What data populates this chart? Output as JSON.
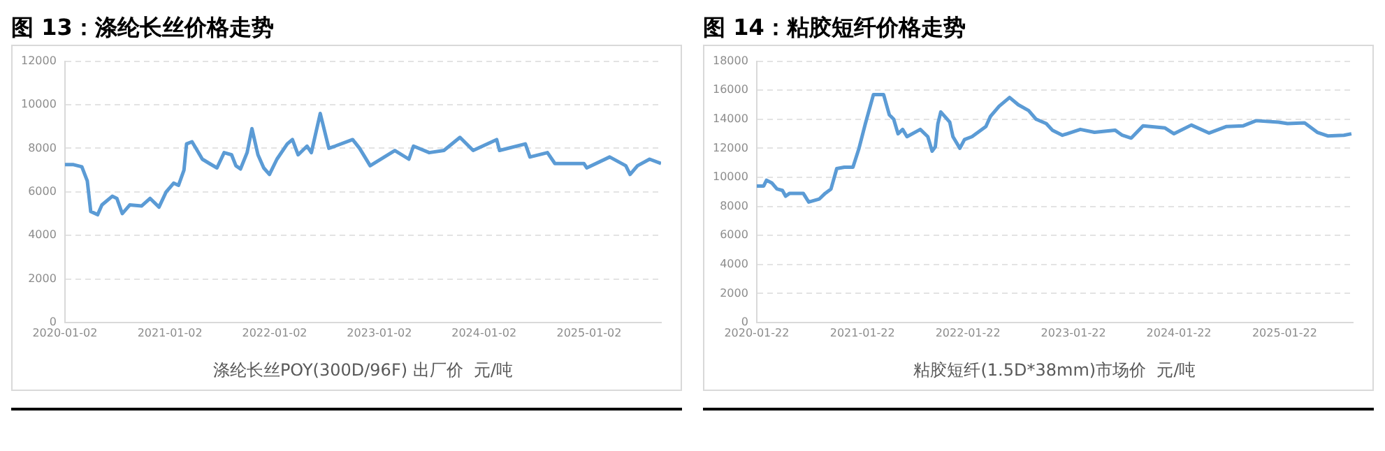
{
  "chart_data": [
    {
      "type": "line",
      "title": "图 13：涤纶长丝价格走势",
      "xlabel": "涤纶长丝POY(300D/96F) 出厂价  元/吨",
      "color": "#5b9bd5",
      "marker": "none",
      "grid": "y",
      "xlim": [
        "2020-01-02",
        "2025-09-10"
      ],
      "xticks": [
        "2020-01-02",
        "2021-01-02",
        "2022-01-02",
        "2023-01-02",
        "2024-01-02",
        "2025-01-02"
      ],
      "ylim": [
        0,
        12000
      ],
      "yticks": [
        0,
        2000,
        4000,
        6000,
        8000,
        10000,
        12000
      ],
      "x": [
        "2020-01-02",
        "2020-02-01",
        "2020-03-01",
        "2020-03-20",
        "2020-04-01",
        "2020-04-25",
        "2020-05-10",
        "2020-06-15",
        "2020-07-01",
        "2020-07-20",
        "2020-08-15",
        "2020-09-25",
        "2020-10-25",
        "2020-11-25",
        "2020-12-20",
        "2021-01-15",
        "2021-02-01",
        "2021-02-20",
        "2021-03-01",
        "2021-03-20",
        "2021-04-05",
        "2021-04-25",
        "2021-05-20",
        "2021-06-15",
        "2021-07-10",
        "2021-08-05",
        "2021-08-20",
        "2021-09-05",
        "2021-09-28",
        "2021-10-15",
        "2021-11-05",
        "2021-11-25",
        "2021-12-15",
        "2022-01-10",
        "2022-02-15",
        "2022-03-05",
        "2022-03-25",
        "2022-04-25",
        "2022-05-10",
        "2022-06-10",
        "2022-07-10",
        "2022-08-01",
        "2022-10-01",
        "2022-10-25",
        "2022-12-01",
        "2023-02-25",
        "2023-04-15",
        "2023-05-01",
        "2023-06-25",
        "2023-08-15",
        "2023-10-10",
        "2023-11-25",
        "2024-02-15",
        "2024-02-25",
        "2024-05-25",
        "2024-06-10",
        "2024-08-10",
        "2024-09-05",
        "2024-12-15",
        "2024-12-25",
        "2025-03-15",
        "2025-05-10",
        "2025-05-25",
        "2025-06-20",
        "2025-08-01",
        "2025-09-10"
      ],
      "values": [
        7250,
        7250,
        7150,
        6500,
        5100,
        4950,
        5400,
        5800,
        5700,
        5000,
        5400,
        5350,
        5700,
        5300,
        6000,
        6400,
        6300,
        7000,
        8200,
        8300,
        7950,
        7500,
        7300,
        7100,
        7800,
        7700,
        7200,
        7050,
        7800,
        8900,
        7700,
        7100,
        6800,
        7500,
        8200,
        8400,
        7700,
        8100,
        7800,
        9600,
        8000,
        8100,
        8400,
        8000,
        7200,
        7900,
        7500,
        8100,
        7800,
        7900,
        8500,
        7900,
        8400,
        7900,
        8200,
        7600,
        7800,
        7300,
        7300,
        7100,
        7600,
        7200,
        6800,
        7200,
        7500,
        7300
      ]
    },
    {
      "type": "line",
      "title": "图 14：粘胶短纤价格走势",
      "xlabel": "粘胶短纤(1.5D*38mm)市场价  元/吨",
      "color": "#5b9bd5",
      "marker": "none",
      "grid": "y",
      "xlim": [
        "2020-01-22",
        "2025-09-15"
      ],
      "xticks": [
        "2020-01-22",
        "2021-01-22",
        "2022-01-22",
        "2023-01-22",
        "2024-01-22",
        "2025-01-22"
      ],
      "ylim": [
        0,
        18000
      ],
      "yticks": [
        0,
        2000,
        4000,
        6000,
        8000,
        10000,
        12000,
        14000,
        16000,
        18000
      ],
      "x": [
        "2020-01-22",
        "2020-02-15",
        "2020-02-25",
        "2020-03-15",
        "2020-04-01",
        "2020-04-20",
        "2020-05-01",
        "2020-05-15",
        "2020-07-01",
        "2020-07-20",
        "2020-08-25",
        "2020-09-15",
        "2020-10-05",
        "2020-10-25",
        "2020-11-20",
        "2020-12-20",
        "2021-01-10",
        "2021-02-01",
        "2021-03-01",
        "2021-04-05",
        "2021-04-25",
        "2021-05-10",
        "2021-05-25",
        "2021-06-10",
        "2021-06-25",
        "2021-08-10",
        "2021-09-05",
        "2021-09-20",
        "2021-10-01",
        "2021-10-10",
        "2021-10-20",
        "2021-11-20",
        "2021-12-01",
        "2021-12-25",
        "2022-01-10",
        "2022-02-05",
        "2022-03-25",
        "2022-04-10",
        "2022-05-10",
        "2022-06-15",
        "2022-07-15",
        "2022-08-20",
        "2022-09-15",
        "2022-10-20",
        "2022-11-10",
        "2022-12-15",
        "2023-02-15",
        "2023-04-05",
        "2023-06-15",
        "2023-07-10",
        "2023-08-10",
        "2023-09-20",
        "2023-12-05",
        "2024-01-05",
        "2024-03-05",
        "2024-05-05",
        "2024-07-05",
        "2024-09-01",
        "2024-10-15",
        "2025-01-01",
        "2025-02-01",
        "2025-04-01",
        "2025-05-15",
        "2025-06-20",
        "2025-08-15",
        "2025-09-10"
      ],
      "values": [
        9400,
        9400,
        9800,
        9600,
        9200,
        9100,
        8700,
        8900,
        8900,
        8300,
        8500,
        8900,
        9200,
        10600,
        10700,
        10700,
        12000,
        13700,
        15700,
        15700,
        14300,
        14000,
        13000,
        13300,
        12800,
        13300,
        12800,
        11800,
        12100,
        13700,
        14500,
        13800,
        12800,
        12000,
        12600,
        12800,
        13500,
        14200,
        14900,
        15500,
        15000,
        14600,
        14000,
        13700,
        13250,
        12900,
        13300,
        13100,
        13250,
        12900,
        12700,
        13550,
        13400,
        13000,
        13600,
        13050,
        13500,
        13550,
        13900,
        13800,
        13700,
        13750,
        13100,
        12850,
        12900,
        13000
      ]
    }
  ]
}
